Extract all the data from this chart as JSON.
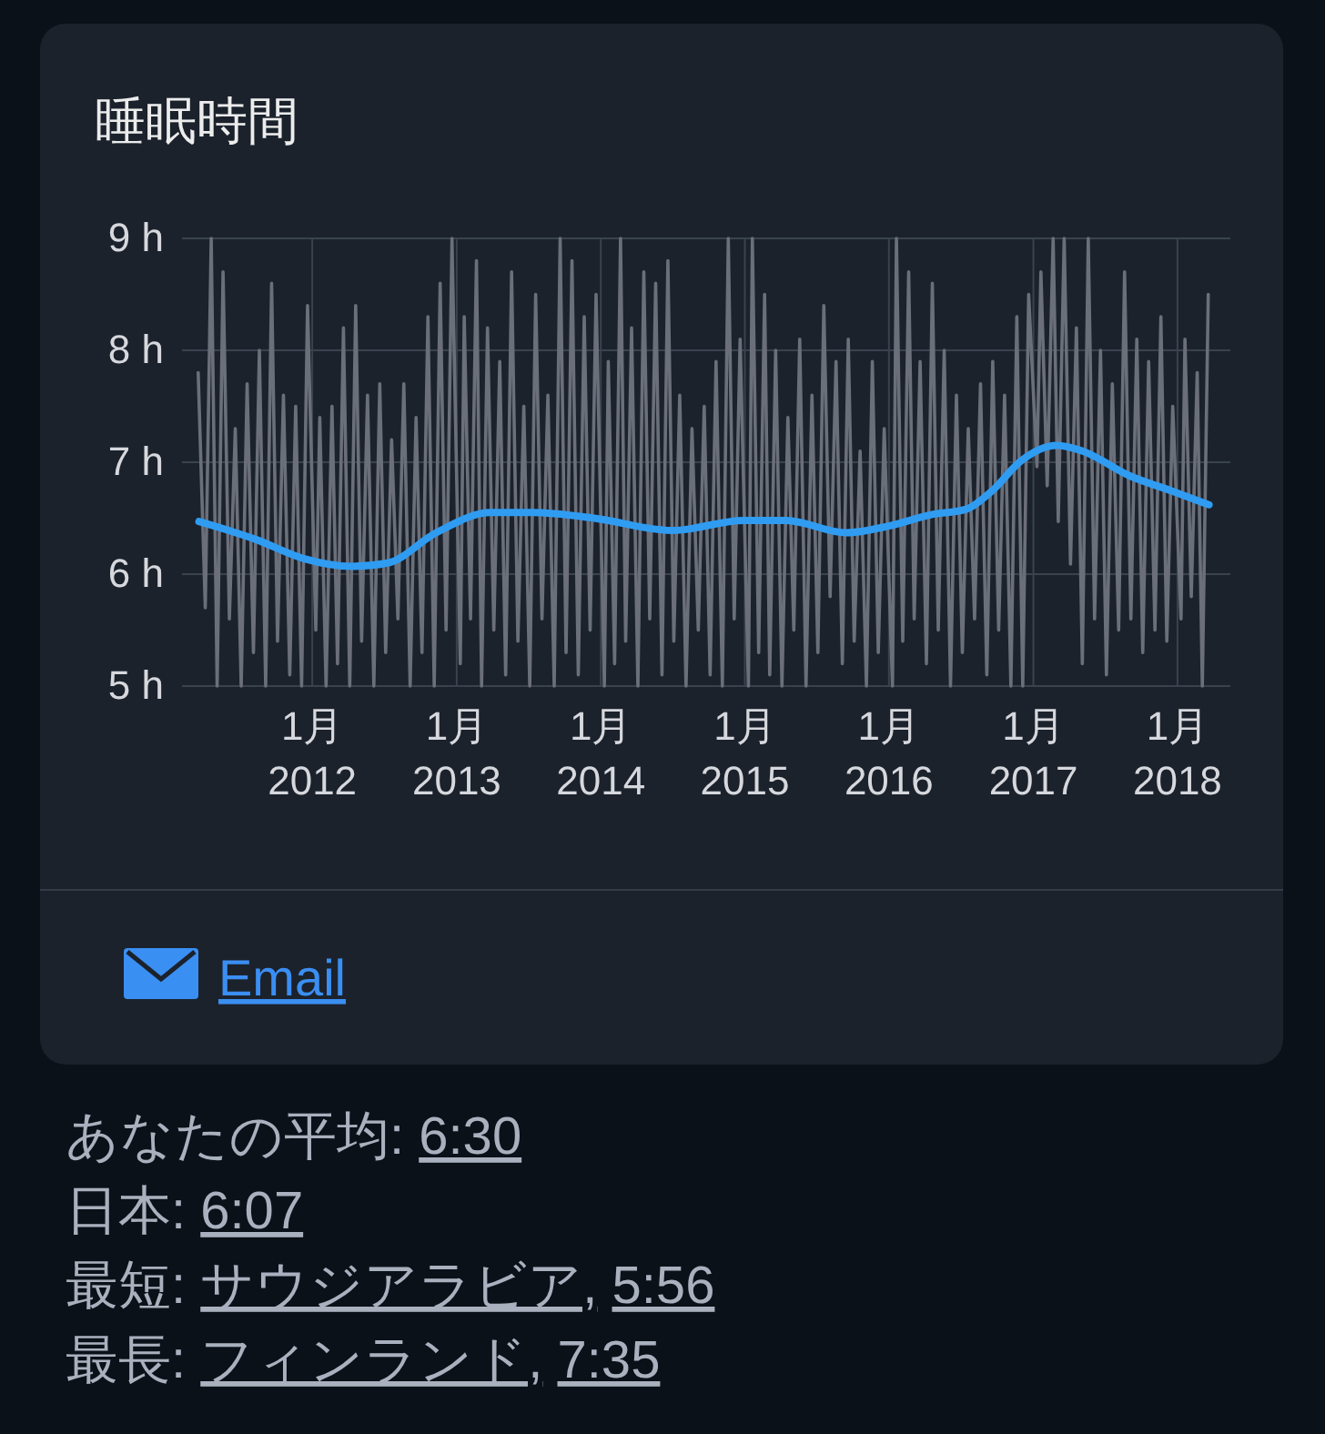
{
  "chart_data": {
    "type": "line",
    "title": "睡眠時間",
    "xlim": [
      "2011-02-05",
      "2018-05-15"
    ],
    "xticks": [
      {
        "value": "2012-01",
        "label": "1月\n2012"
      },
      {
        "value": "2013-01",
        "label": "1月\n2013"
      },
      {
        "value": "2014-01",
        "label": "1月\n2014"
      },
      {
        "value": "2015-01",
        "label": "1月\n2015"
      },
      {
        "value": "2016-01",
        "label": "1月\n2016"
      },
      {
        "value": "2017-01",
        "label": "1月\n2017"
      },
      {
        "value": "2018-01",
        "label": "1月\n2018"
      }
    ],
    "ylim": [
      5,
      9
    ],
    "yticks": [
      {
        "value": 5,
        "label": "5 h"
      },
      {
        "value": 6,
        "label": "6 h"
      },
      {
        "value": 7,
        "label": "7 h"
      },
      {
        "value": 8,
        "label": "8 h"
      },
      {
        "value": 9,
        "label": "9 h"
      }
    ],
    "grid": true,
    "series": [
      {
        "color": "#6b6f7a",
        "x": [
          "2011-03-18",
          "2011-04-05",
          "2011-04-20",
          "2011-05-05",
          "2011-05-20",
          "2011-06-05",
          "2011-06-20",
          "2011-07-05",
          "2011-07-20",
          "2011-08-05",
          "2011-08-20",
          "2011-09-05",
          "2011-09-20",
          "2011-10-05",
          "2011-10-20",
          "2011-11-05",
          "2011-11-20",
          "2011-12-05",
          "2011-12-20",
          "2012-01-10",
          "2012-01-20",
          "2012-02-05",
          "2012-02-20",
          "2012-03-05",
          "2012-03-20",
          "2012-04-05",
          "2012-04-20",
          "2012-05-05",
          "2012-05-20",
          "2012-06-05",
          "2012-06-20",
          "2012-07-05",
          "2012-07-20",
          "2012-08-05",
          "2012-08-20",
          "2012-09-05",
          "2012-09-20",
          "2012-10-05",
          "2012-10-20",
          "2012-11-05",
          "2012-11-20",
          "2012-12-05",
          "2012-12-20",
          "2013-01-10",
          "2013-01-20",
          "2013-02-05",
          "2013-02-20",
          "2013-03-05",
          "2013-03-20",
          "2013-04-05",
          "2013-04-20",
          "2013-05-05",
          "2013-05-20",
          "2013-06-05",
          "2013-06-20",
          "2013-07-05",
          "2013-07-20",
          "2013-08-05",
          "2013-08-20",
          "2013-09-05",
          "2013-09-20",
          "2013-10-05",
          "2013-10-20",
          "2013-11-05",
          "2013-11-20",
          "2013-12-05",
          "2013-12-20",
          "2014-01-10",
          "2014-01-20",
          "2014-02-05",
          "2014-02-20",
          "2014-03-05",
          "2014-03-20",
          "2014-04-05",
          "2014-04-20",
          "2014-05-05",
          "2014-05-20",
          "2014-06-05",
          "2014-06-20",
          "2014-07-05",
          "2014-07-20",
          "2014-08-05",
          "2014-08-20",
          "2014-09-05",
          "2014-09-20",
          "2014-10-05",
          "2014-10-20",
          "2014-11-05",
          "2014-11-20",
          "2014-12-05",
          "2014-12-20",
          "2015-01-10",
          "2015-01-20",
          "2015-02-05",
          "2015-02-20",
          "2015-03-05",
          "2015-03-20",
          "2015-04-05",
          "2015-04-20",
          "2015-05-05",
          "2015-05-20",
          "2015-06-05",
          "2015-06-20",
          "2015-07-05",
          "2015-07-20",
          "2015-08-05",
          "2015-08-20",
          "2015-09-05",
          "2015-09-20",
          "2015-10-05",
          "2015-10-20",
          "2015-11-05",
          "2015-11-20",
          "2015-12-05",
          "2015-12-20",
          "2016-01-10",
          "2016-01-20",
          "2016-02-05",
          "2016-02-20",
          "2016-03-05",
          "2016-03-20",
          "2016-04-05",
          "2016-04-20",
          "2016-05-05",
          "2016-05-20",
          "2016-06-05",
          "2016-06-20",
          "2016-07-05",
          "2016-07-20",
          "2016-08-05",
          "2016-08-20",
          "2016-09-05",
          "2016-09-20",
          "2016-10-05",
          "2016-10-20",
          "2016-11-05",
          "2016-11-20",
          "2016-12-05",
          "2016-12-20",
          "2017-01-10",
          "2017-01-20",
          "2017-02-05",
          "2017-02-20",
          "2017-03-05",
          "2017-03-20",
          "2017-04-05",
          "2017-04-20",
          "2017-05-05",
          "2017-05-20",
          "2017-06-05",
          "2017-06-20",
          "2017-07-05",
          "2017-07-20",
          "2017-08-05",
          "2017-08-20",
          "2017-09-05",
          "2017-09-20",
          "2017-10-05",
          "2017-10-20",
          "2017-11-05",
          "2017-11-20",
          "2017-12-05",
          "2017-12-20",
          "2018-01-10",
          "2018-01-20",
          "2018-02-05",
          "2018-02-20",
          "2018-03-05",
          "2018-03-20"
        ],
        "values": [
          7.8,
          5.7,
          9.0,
          5.0,
          8.7,
          5.6,
          7.3,
          5.0,
          7.7,
          5.3,
          8.0,
          5.0,
          8.6,
          5.4,
          7.6,
          5.1,
          7.5,
          5.0,
          8.4,
          5.5,
          7.4,
          5.0,
          7.5,
          5.2,
          8.2,
          5.0,
          8.4,
          5.4,
          7.6,
          5.0,
          7.7,
          5.3,
          7.2,
          5.6,
          7.7,
          5.0,
          7.4,
          5.3,
          8.3,
          5.0,
          8.6,
          5.5,
          9.0,
          5.2,
          8.3,
          5.6,
          8.8,
          5.0,
          8.2,
          5.5,
          7.9,
          5.1,
          8.7,
          5.4,
          7.5,
          5.0,
          8.5,
          5.6,
          7.6,
          5.0,
          9.0,
          5.3,
          8.8,
          5.1,
          8.3,
          5.5,
          8.5,
          5.0,
          7.9,
          5.2,
          9.0,
          5.4,
          8.2,
          5.0,
          8.7,
          5.6,
          8.6,
          5.1,
          8.8,
          5.4,
          7.6,
          5.0,
          7.3,
          5.5,
          7.5,
          5.1,
          7.9,
          5.0,
          9.0,
          5.6,
          8.1,
          5.0,
          9.0,
          5.3,
          8.5,
          5.1,
          8.0,
          5.0,
          7.4,
          5.5,
          8.1,
          5.0,
          7.6,
          5.3,
          8.4,
          5.8,
          7.9,
          5.2,
          8.1,
          5.4,
          7.1,
          5.0,
          7.9,
          5.3,
          7.3,
          5.0,
          9.0,
          5.4,
          8.7,
          5.6,
          7.9,
          5.2,
          8.6,
          5.5,
          8.0,
          5.0,
          7.6,
          5.3,
          7.3,
          5.6,
          7.7,
          5.1,
          7.9,
          5.5,
          7.6,
          5.0,
          8.3,
          5.0,
          8.5,
          6.96,
          8.7,
          6.79,
          9.0,
          6.47,
          9.0,
          6.09,
          8.2,
          5.2,
          9.0,
          5.6,
          8.0,
          5.1,
          7.7,
          5.5,
          8.7,
          5.6,
          8.1,
          5.3,
          7.9,
          5.5,
          8.3,
          5.4,
          7.5,
          5.6,
          8.1,
          5.8,
          7.8,
          5.0,
          8.5
        ]
      },
      {
        "color": "#2f9cf2",
        "x": [
          "2011-03-20",
          "2011-08-11",
          "2011-12-10",
          "2012-04-10",
          "2012-07-10",
          "2012-11-10",
          "2013-03-28",
          "2013-07-12",
          "2013-12-15",
          "2014-06-30",
          "2014-12-30",
          "2015-04-15",
          "2015-09-15",
          "2015-12-31",
          "2016-04-15",
          "2016-07-15",
          "2016-09-17",
          "2016-11-30",
          "2017-03-01",
          "2017-05-05",
          "2017-09-01",
          "2017-12-20",
          "2018-03-22"
        ],
        "values": [
          6.47,
          6.31,
          6.14,
          6.07,
          6.1,
          6.37,
          6.55,
          6.55,
          6.5,
          6.39,
          6.48,
          6.48,
          6.37,
          6.43,
          6.53,
          6.58,
          6.74,
          7.01,
          7.15,
          7.1,
          6.88,
          6.74,
          6.62
        ]
      }
    ],
    "annotations": [
      "Email",
      "あなたの平均: 6:30",
      "日本: 6:07",
      "最短: サウジアラビア, 5:56",
      "最長: フィンランド, 7:35"
    ]
  }
}
